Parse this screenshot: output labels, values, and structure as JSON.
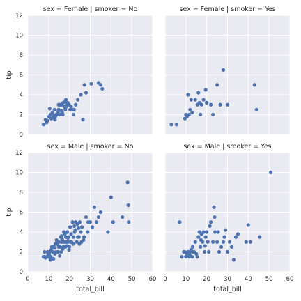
{
  "colors": {
    "panel_bg": "#eaeaf2",
    "grid": "#ffffff",
    "point": "#4c72b0",
    "text": "#262626"
  },
  "chart_data": [
    {
      "type": "scatter",
      "title": "sex = Female | smoker = No",
      "xlabel": "",
      "ylabel": "tip",
      "xlim": [
        0,
        60
      ],
      "ylim": [
        0,
        12
      ],
      "xticks": [],
      "yticks": [
        "0",
        "2",
        "4",
        "6",
        "8",
        "10",
        "12"
      ],
      "grid": true,
      "x": [
        7.5,
        8.5,
        9.5,
        10.2,
        10.8,
        11.2,
        11.8,
        12.5,
        12.8,
        13.2,
        13.6,
        14.0,
        14.5,
        14.8,
        15.2,
        15.5,
        16.0,
        16.3,
        16.5,
        17.0,
        17.5,
        17.8,
        18.0,
        18.3,
        18.8,
        19.2,
        19.8,
        20.3,
        20.8,
        21.5,
        22.2,
        23.0,
        24.0,
        25.5,
        26.5,
        27.2,
        28.0,
        30.5,
        34.0,
        35.0,
        35.8,
        10.5,
        12.0,
        14.8,
        16.8,
        18.5,
        22.0,
        9.0,
        13.0,
        15.0
      ],
      "y": [
        1.0,
        1.5,
        1.4,
        1.8,
        2.0,
        1.6,
        2.2,
        1.9,
        2.5,
        1.8,
        2.0,
        2.0,
        2.3,
        2.5,
        2.0,
        3.0,
        2.4,
        3.0,
        2.2,
        3.2,
        2.8,
        3.3,
        2.5,
        3.5,
        3.0,
        3.2,
        3.0,
        2.5,
        2.8,
        2.5,
        2.5,
        3.0,
        3.5,
        4.0,
        1.5,
        5.0,
        4.2,
        5.1,
        5.2,
        5.0,
        4.6,
        2.6,
        1.7,
        3.0,
        2.0,
        2.8,
        2.0,
        1.2,
        1.5,
        3.0
      ]
    },
    {
      "type": "scatter",
      "title": "sex = Female | smoker = Yes",
      "xlabel": "",
      "ylabel": "",
      "xlim": [
        0,
        60
      ],
      "ylim": [
        0,
        12
      ],
      "xticks": [],
      "yticks": [],
      "grid": true,
      "x": [
        3.0,
        5.5,
        9.5,
        10.0,
        10.5,
        11.0,
        11.5,
        12.0,
        12.5,
        13.0,
        14.5,
        15.5,
        16.0,
        16.5,
        17.0,
        17.5,
        18.5,
        19.5,
        20.0,
        22.0,
        23.0,
        25.0,
        26.5,
        28.0,
        30.0,
        43.0,
        44.0
      ],
      "y": [
        1.0,
        1.0,
        1.6,
        2.0,
        1.8,
        4.0,
        2.0,
        2.5,
        3.5,
        2.2,
        3.5,
        3.0,
        4.2,
        3.2,
        2.0,
        3.0,
        3.5,
        4.5,
        3.2,
        3.0,
        2.0,
        5.0,
        3.0,
        6.5,
        3.0,
        5.0,
        2.5
      ]
    },
    {
      "type": "scatter",
      "title": "sex = Male | smoker = No",
      "xlabel": "total_bill",
      "ylabel": "tip",
      "xlim": [
        0,
        60
      ],
      "ylim": [
        0,
        12
      ],
      "xticks": [
        "0",
        "10",
        "20",
        "30",
        "40",
        "50",
        "60"
      ],
      "yticks": [
        "0",
        "2",
        "4",
        "6",
        "8",
        "10",
        "12"
      ],
      "grid": true,
      "x": [
        7.5,
        8.0,
        8.5,
        9.0,
        9.5,
        10.0,
        10.2,
        10.5,
        11.0,
        11.5,
        12.0,
        12.5,
        13.0,
        13.2,
        13.5,
        14.0,
        14.5,
        14.8,
        15.0,
        15.5,
        15.8,
        16.0,
        16.3,
        16.5,
        17.0,
        17.3,
        17.5,
        18.0,
        18.3,
        18.5,
        19.0,
        19.2,
        19.5,
        20.0,
        20.3,
        20.5,
        21.0,
        21.5,
        22.0,
        22.5,
        23.0,
        23.5,
        24.0,
        24.5,
        25.0,
        25.5,
        26.0,
        27.0,
        28.0,
        29.0,
        30.0,
        31.0,
        32.0,
        33.0,
        34.0,
        35.0,
        38.5,
        40.0,
        41.0,
        45.5,
        48.0,
        48.3,
        48.5,
        7.8,
        9.8,
        11.2,
        12.8,
        14.2,
        16.8,
        18.8,
        20.8,
        22.8,
        24.8,
        26.8,
        28.8,
        10.8,
        13.8,
        15.3,
        17.8,
        19.8,
        21.8,
        23.8,
        25.8,
        12.3,
        16.2,
        19.3,
        22.3,
        24.3
      ],
      "y": [
        1.5,
        2.0,
        1.4,
        1.5,
        2.0,
        1.5,
        1.7,
        2.0,
        1.5,
        2.5,
        2.0,
        2.5,
        1.8,
        2.8,
        2.0,
        3.0,
        2.0,
        2.5,
        3.0,
        2.5,
        3.5,
        2.0,
        3.0,
        3.3,
        2.5,
        4.0,
        3.0,
        2.5,
        3.5,
        3.0,
        4.0,
        3.0,
        3.5,
        2.5,
        4.5,
        3.0,
        3.0,
        5.0,
        3.5,
        4.0,
        5.0,
        3.0,
        3.5,
        3.5,
        5.0,
        4.0,
        4.5,
        3.5,
        5.5,
        5.0,
        5.0,
        4.5,
        6.5,
        5.0,
        5.5,
        6.0,
        4.0,
        7.5,
        5.0,
        5.5,
        9.0,
        6.7,
        5.0,
        1.5,
        1.8,
        2.2,
        2.4,
        2.8,
        2.3,
        2.6,
        3.8,
        4.2,
        2.8,
        3.2,
        4.0,
        1.2,
        3.2,
        1.6,
        3.8,
        2.2,
        2.8,
        4.8,
        3.0,
        1.3,
        3.6,
        3.4,
        4.6,
        4.4
      ]
    },
    {
      "type": "scatter",
      "title": "sex = Male | smoker = Yes",
      "xlabel": "total_bill",
      "ylabel": "",
      "xlim": [
        0,
        60
      ],
      "ylim": [
        0,
        12
      ],
      "xticks": [
        "0",
        "10",
        "20",
        "30",
        "40",
        "50",
        "60"
      ],
      "yticks": [],
      "grid": true,
      "x": [
        7.0,
        8.0,
        9.0,
        10.0,
        10.5,
        11.0,
        11.5,
        12.0,
        12.5,
        13.0,
        13.5,
        14.0,
        14.5,
        15.5,
        16.0,
        16.5,
        17.0,
        17.5,
        18.0,
        18.5,
        19.0,
        19.5,
        20.0,
        20.5,
        21.0,
        22.0,
        23.0,
        23.5,
        24.0,
        25.0,
        25.5,
        26.0,
        27.0,
        28.0,
        28.5,
        29.0,
        30.0,
        31.0,
        32.0,
        33.0,
        34.0,
        35.0,
        39.0,
        40.0,
        41.0,
        45.5,
        50.8,
        9.5,
        11.8,
        13.2,
        15.0,
        17.2,
        19.2,
        21.5,
        23.8
      ],
      "y": [
        5.0,
        1.5,
        2.0,
        1.5,
        1.8,
        2.0,
        1.5,
        2.0,
        2.2,
        1.5,
        2.0,
        2.0,
        3.0,
        1.5,
        3.5,
        4.0,
        2.5,
        3.8,
        3.0,
        4.0,
        2.0,
        3.5,
        4.0,
        3.0,
        2.0,
        5.0,
        3.0,
        6.5,
        4.0,
        3.0,
        4.0,
        2.0,
        2.5,
        3.0,
        3.5,
        4.2,
        2.0,
        3.0,
        2.5,
        1.2,
        3.5,
        3.8,
        3.0,
        4.7,
        3.0,
        3.5,
        10.0,
        2.0,
        1.7,
        2.5,
        1.8,
        3.2,
        2.6,
        4.6,
        5.5
      ]
    }
  ]
}
